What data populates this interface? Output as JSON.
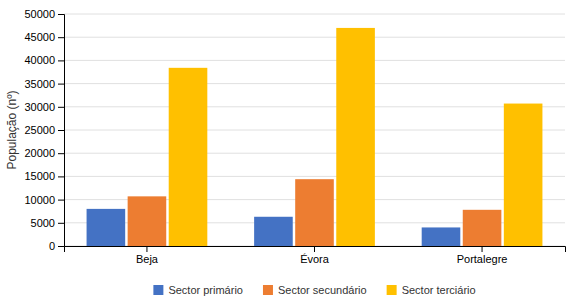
{
  "chart_data": {
    "type": "bar",
    "categories": [
      "Beja",
      "Évora",
      "Portalegre"
    ],
    "series": [
      {
        "name": "Sector primário",
        "color": "#4472C4",
        "values": [
          8000,
          6300,
          4000
        ]
      },
      {
        "name": "Sector secundário",
        "color": "#ED7D31",
        "values": [
          10700,
          14400,
          7800
        ]
      },
      {
        "name": "Sector terciário",
        "color": "#FFC000",
        "values": [
          38400,
          47000,
          30700
        ]
      }
    ],
    "ylabel": "População (nº)",
    "ylim": [
      0,
      50000
    ],
    "yticks": [
      0,
      5000,
      10000,
      15000,
      20000,
      25000,
      30000,
      35000,
      40000,
      45000,
      50000
    ],
    "grid": true,
    "legend": "bottom"
  }
}
